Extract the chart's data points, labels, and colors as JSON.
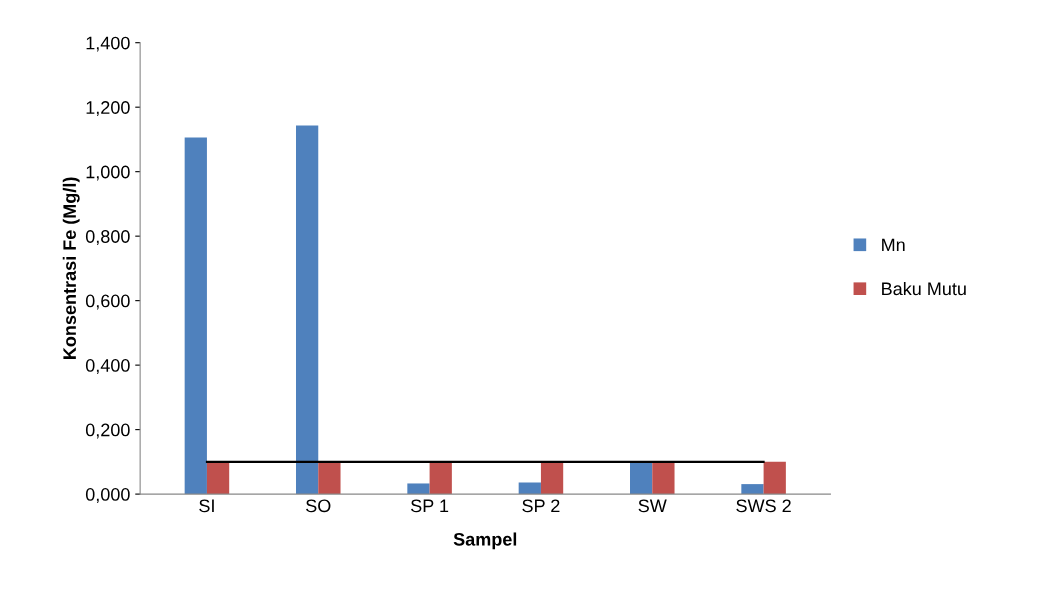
{
  "chart_data": {
    "type": "bar",
    "xlabel": "Sampel",
    "ylabel": "Konsentrasi Fe (Mg/l)",
    "categories": [
      "SI",
      "SO",
      "SP 1",
      "SP 2",
      "SW",
      "SWS 2"
    ],
    "series": [
      {
        "name": "Mn",
        "color": "#4f81bd",
        "values": [
          1.106,
          1.143,
          0.033,
          0.036,
          0.1,
          0.031
        ]
      },
      {
        "name": "Baku Mutu",
        "color": "#c0504d",
        "values": [
          0.1,
          0.1,
          0.1,
          0.1,
          0.1,
          0.1
        ]
      },
      {
        "type": "line",
        "color": "#000000",
        "values": [
          0.1,
          0.1,
          0.1,
          0.1,
          0.1,
          0.1
        ]
      }
    ],
    "ylim": [
      0,
      1.4
    ],
    "yticks": [
      {
        "value": 0,
        "label": "0,000"
      },
      {
        "value": 0.2,
        "label": "0,200"
      },
      {
        "value": 0.4,
        "label": "0,400"
      },
      {
        "value": 0.6,
        "label": "0,600"
      },
      {
        "value": 0.8,
        "label": "0,800"
      },
      {
        "value": 1.0,
        "label": "1,000"
      },
      {
        "value": 1.2,
        "label": "1,200"
      },
      {
        "value": 1.4,
        "label": "1,400"
      }
    ],
    "grid": false,
    "legend": "right",
    "marker": "none"
  }
}
